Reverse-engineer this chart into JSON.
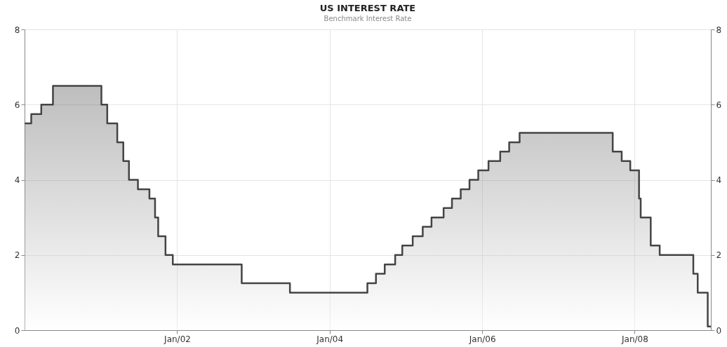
{
  "chart_data": {
    "type": "area",
    "title": "US INTEREST RATE",
    "subtitle": "Benchmark Interest Rate",
    "x": [
      "2000-01-01",
      "2000-02-02",
      "2000-02-02",
      "2000-03-21",
      "2000-03-21",
      "2000-05-16",
      "2000-05-16",
      "2001-01-03",
      "2001-01-03",
      "2001-01-31",
      "2001-01-31",
      "2001-03-20",
      "2001-03-20",
      "2001-04-18",
      "2001-04-18",
      "2001-05-15",
      "2001-05-15",
      "2001-06-27",
      "2001-06-27",
      "2001-08-21",
      "2001-08-21",
      "2001-09-17",
      "2001-09-17",
      "2001-10-02",
      "2001-10-02",
      "2001-11-06",
      "2001-11-06",
      "2001-12-11",
      "2001-12-11",
      "2002-11-06",
      "2002-11-06",
      "2003-06-25",
      "2003-06-25",
      "2004-06-30",
      "2004-06-30",
      "2004-08-10",
      "2004-08-10",
      "2004-09-21",
      "2004-09-21",
      "2004-11-10",
      "2004-11-10",
      "2004-12-14",
      "2004-12-14",
      "2005-02-02",
      "2005-02-02",
      "2005-03-22",
      "2005-03-22",
      "2005-05-03",
      "2005-05-03",
      "2005-06-30",
      "2005-06-30",
      "2005-08-09",
      "2005-08-09",
      "2005-09-20",
      "2005-09-20",
      "2005-11-01",
      "2005-11-01",
      "2005-12-13",
      "2005-12-13",
      "2006-01-31",
      "2006-01-31",
      "2006-03-28",
      "2006-03-28",
      "2006-05-10",
      "2006-05-10",
      "2006-06-29",
      "2006-06-29",
      "2007-09-18",
      "2007-09-18",
      "2007-10-31",
      "2007-10-31",
      "2007-12-11",
      "2007-12-11",
      "2008-01-22",
      "2008-01-22",
      "2008-01-30",
      "2008-01-30",
      "2008-03-18",
      "2008-03-18",
      "2008-04-30",
      "2008-04-30",
      "2008-10-08",
      "2008-10-08",
      "2008-10-29",
      "2008-10-29",
      "2008-12-16",
      "2008-12-16",
      "2008-12-31"
    ],
    "series": [
      {
        "color": "#444444",
        "values": [
          5.5,
          5.5,
          5.75,
          5.75,
          6.0,
          6.0,
          6.5,
          6.5,
          6.0,
          6.0,
          5.5,
          5.5,
          5.0,
          5.0,
          4.5,
          4.5,
          4.0,
          4.0,
          3.75,
          3.75,
          3.5,
          3.5,
          3.0,
          3.0,
          2.5,
          2.5,
          2.0,
          2.0,
          1.75,
          1.75,
          1.25,
          1.25,
          1.0,
          1.0,
          1.25,
          1.25,
          1.5,
          1.5,
          1.75,
          1.75,
          2.0,
          2.0,
          2.25,
          2.25,
          2.5,
          2.5,
          2.75,
          2.75,
          3.0,
          3.0,
          3.25,
          3.25,
          3.5,
          3.5,
          3.75,
          3.75,
          4.0,
          4.0,
          4.25,
          4.25,
          4.5,
          4.5,
          4.75,
          4.75,
          5.0,
          5.0,
          5.25,
          5.25,
          4.75,
          4.75,
          4.5,
          4.5,
          4.25,
          4.25,
          3.5,
          3.5,
          3.0,
          3.0,
          2.25,
          2.25,
          2.0,
          2.0,
          1.5,
          1.5,
          1.0,
          1.0,
          0.1,
          0.1
        ]
      }
    ],
    "xlim": [
      "2000-01-01",
      "2008-12-31"
    ],
    "xticks": [
      {
        "value": "2002-01-01",
        "label": "Jan/02"
      },
      {
        "value": "2004-01-01",
        "label": "Jan/04"
      },
      {
        "value": "2006-01-01",
        "label": "Jan/06"
      },
      {
        "value": "2008-01-01",
        "label": "Jan/08"
      }
    ],
    "ylim": [
      0,
      8
    ],
    "yticks": [
      0,
      2,
      4,
      6,
      8
    ],
    "y2lim": [
      0,
      8
    ],
    "y2ticks": [
      0,
      2,
      4,
      6,
      8
    ],
    "grid": true,
    "marker": "none",
    "line_style": "solid"
  }
}
